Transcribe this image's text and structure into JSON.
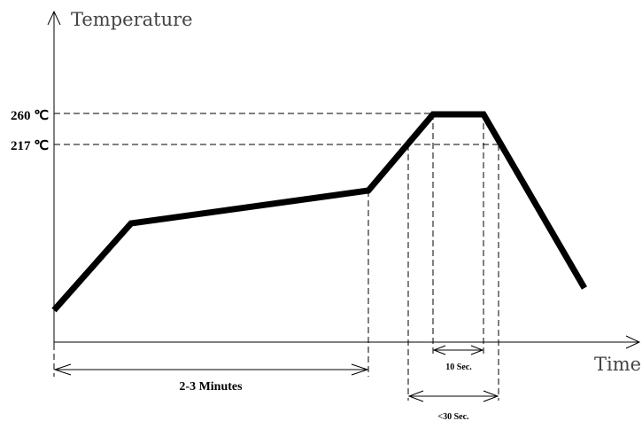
{
  "axes": {
    "y_title": "Temperature",
    "x_title": "Time"
  },
  "levels": [
    {
      "label": "260 ℃"
    },
    {
      "label": "217 ℃"
    }
  ],
  "dimensions": {
    "preheat": "2-3 Minutes",
    "peak": "10 Sec.",
    "above_liquidus": "<30 Sec."
  },
  "colors": {
    "line": "#000000",
    "axis_title": "#444444",
    "background": "#ffffff"
  }
}
